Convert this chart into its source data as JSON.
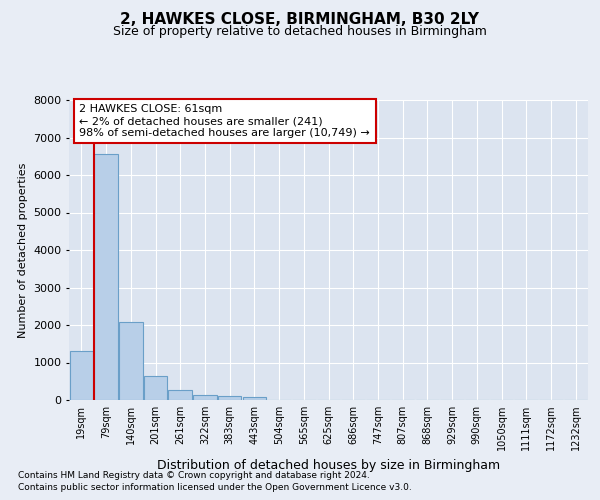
{
  "title1": "2, HAWKES CLOSE, BIRMINGHAM, B30 2LY",
  "title2": "Size of property relative to detached houses in Birmingham",
  "xlabel": "Distribution of detached houses by size in Birmingham",
  "ylabel": "Number of detached properties",
  "footer1": "Contains HM Land Registry data © Crown copyright and database right 2024.",
  "footer2": "Contains public sector information licensed under the Open Government Licence v3.0.",
  "annotation_line1": "2 HAWKES CLOSE: 61sqm",
  "annotation_line2": "← 2% of detached houses are smaller (241)",
  "annotation_line3": "98% of semi-detached houses are larger (10,749) →",
  "bar_values": [
    1310,
    6560,
    2080,
    650,
    260,
    130,
    100,
    70,
    0,
    0,
    0,
    0,
    0,
    0,
    0,
    0,
    0,
    0,
    0,
    0,
    0
  ],
  "bar_color": "#b8cfe8",
  "bar_edge_color": "#6a9fc8",
  "red_line_color": "#cc0000",
  "bg_color": "#e8edf5",
  "plot_bg_color": "#dce4f0",
  "grid_color": "#ffffff",
  "categories": [
    "19sqm",
    "79sqm",
    "140sqm",
    "201sqm",
    "261sqm",
    "322sqm",
    "383sqm",
    "443sqm",
    "504sqm",
    "565sqm",
    "625sqm",
    "686sqm",
    "747sqm",
    "807sqm",
    "868sqm",
    "929sqm",
    "990sqm",
    "1050sqm",
    "1111sqm",
    "1172sqm",
    "1232sqm"
  ],
  "ylim": [
    0,
    8000
  ],
  "yticks": [
    0,
    1000,
    2000,
    3000,
    4000,
    5000,
    6000,
    7000,
    8000
  ],
  "annotation_box_color": "#ffffff",
  "annotation_box_edge": "#cc0000",
  "title1_fontsize": 11,
  "title2_fontsize": 9,
  "ylabel_fontsize": 8,
  "xlabel_fontsize": 9,
  "tick_fontsize": 8,
  "xtick_fontsize": 7
}
